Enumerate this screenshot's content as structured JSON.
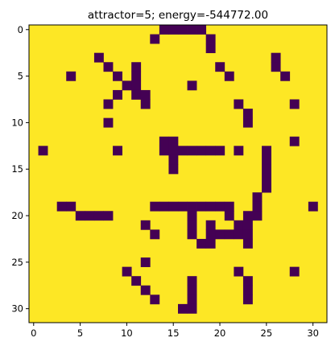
{
  "title": "attractor=5; energy=-544772.00",
  "chart_data": {
    "type": "heatmap",
    "title": "attractor=5; energy=-544772.00",
    "grid_size": [
      32,
      32
    ],
    "colors": {
      "on": "#fde725",
      "off": "#440154",
      "frame": "#000000"
    },
    "grid": false,
    "x_ticks": [
      0,
      5,
      10,
      15,
      20,
      25,
      30
    ],
    "y_ticks": [
      0,
      5,
      10,
      15,
      20,
      25,
      30
    ],
    "xlim": [
      -0.5,
      31.5
    ],
    "ylim": [
      31.5,
      -0.5
    ],
    "cell_value_legend": {
      "on": 1,
      "off": -1
    },
    "off_cells": [
      [
        0,
        14
      ],
      [
        0,
        15
      ],
      [
        0,
        16
      ],
      [
        0,
        17
      ],
      [
        0,
        18
      ],
      [
        1,
        13
      ],
      [
        1,
        19
      ],
      [
        2,
        19
      ],
      [
        3,
        7
      ],
      [
        3,
        26
      ],
      [
        4,
        8
      ],
      [
        4,
        11
      ],
      [
        4,
        20
      ],
      [
        4,
        26
      ],
      [
        5,
        4
      ],
      [
        5,
        9
      ],
      [
        5,
        11
      ],
      [
        5,
        21
      ],
      [
        5,
        27
      ],
      [
        6,
        10
      ],
      [
        6,
        11
      ],
      [
        6,
        17
      ],
      [
        7,
        9
      ],
      [
        7,
        11
      ],
      [
        7,
        12
      ],
      [
        8,
        8
      ],
      [
        8,
        12
      ],
      [
        8,
        22
      ],
      [
        8,
        28
      ],
      [
        9,
        23
      ],
      [
        10,
        8
      ],
      [
        10,
        23
      ],
      [
        12,
        14
      ],
      [
        12,
        15
      ],
      [
        12,
        28
      ],
      [
        13,
        1
      ],
      [
        13,
        9
      ],
      [
        13,
        14
      ],
      [
        13,
        15
      ],
      [
        13,
        16
      ],
      [
        13,
        17
      ],
      [
        13,
        18
      ],
      [
        13,
        19
      ],
      [
        13,
        20
      ],
      [
        13,
        22
      ],
      [
        13,
        25
      ],
      [
        14,
        15
      ],
      [
        14,
        25
      ],
      [
        15,
        15
      ],
      [
        15,
        25
      ],
      [
        16,
        25
      ],
      [
        17,
        25
      ],
      [
        18,
        24
      ],
      [
        19,
        3
      ],
      [
        19,
        4
      ],
      [
        19,
        13
      ],
      [
        19,
        14
      ],
      [
        19,
        15
      ],
      [
        19,
        16
      ],
      [
        19,
        17
      ],
      [
        19,
        18
      ],
      [
        19,
        19
      ],
      [
        19,
        20
      ],
      [
        19,
        21
      ],
      [
        19,
        24
      ],
      [
        19,
        30
      ],
      [
        20,
        5
      ],
      [
        20,
        6
      ],
      [
        20,
        7
      ],
      [
        20,
        8
      ],
      [
        20,
        17
      ],
      [
        20,
        21
      ],
      [
        20,
        23
      ],
      [
        20,
        24
      ],
      [
        21,
        12
      ],
      [
        21,
        17
      ],
      [
        21,
        19
      ],
      [
        21,
        22
      ],
      [
        21,
        23
      ],
      [
        22,
        13
      ],
      [
        22,
        17
      ],
      [
        22,
        19
      ],
      [
        22,
        20
      ],
      [
        22,
        21
      ],
      [
        22,
        22
      ],
      [
        22,
        23
      ],
      [
        23,
        18
      ],
      [
        23,
        19
      ],
      [
        23,
        23
      ],
      [
        25,
        12
      ],
      [
        26,
        10
      ],
      [
        26,
        22
      ],
      [
        26,
        28
      ],
      [
        27,
        11
      ],
      [
        27,
        17
      ],
      [
        27,
        23
      ],
      [
        28,
        12
      ],
      [
        28,
        17
      ],
      [
        28,
        23
      ],
      [
        29,
        13
      ],
      [
        29,
        17
      ],
      [
        29,
        23
      ],
      [
        30,
        16
      ],
      [
        30,
        17
      ]
    ]
  }
}
